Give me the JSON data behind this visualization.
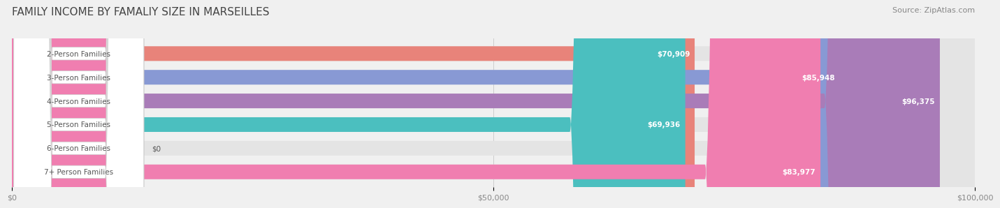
{
  "title": "FAMILY INCOME BY FAMALIY SIZE IN MARSEILLES",
  "source": "Source: ZipAtlas.com",
  "categories": [
    "2-Person Families",
    "3-Person Families",
    "4-Person Families",
    "5-Person Families",
    "6-Person Families",
    "7+ Person Families"
  ],
  "values": [
    70909,
    85948,
    96375,
    69936,
    0,
    83977
  ],
  "bar_colors": [
    "#E8837A",
    "#8899D4",
    "#A97CB8",
    "#4BBFBF",
    "#B0B8E8",
    "#F07EB0"
  ],
  "bar_height": 0.62,
  "xlim": [
    0,
    100000
  ],
  "xticks": [
    0,
    50000,
    100000
  ],
  "xtick_labels": [
    "$0",
    "$50,000",
    "$100,000"
  ],
  "background_color": "#f0f0f0",
  "bar_background_color": "#e4e4e4",
  "label_bg_color": "#ffffff",
  "title_fontsize": 11,
  "source_fontsize": 8,
  "label_fontsize": 7.5,
  "value_fontsize": 7.5,
  "tick_fontsize": 8
}
